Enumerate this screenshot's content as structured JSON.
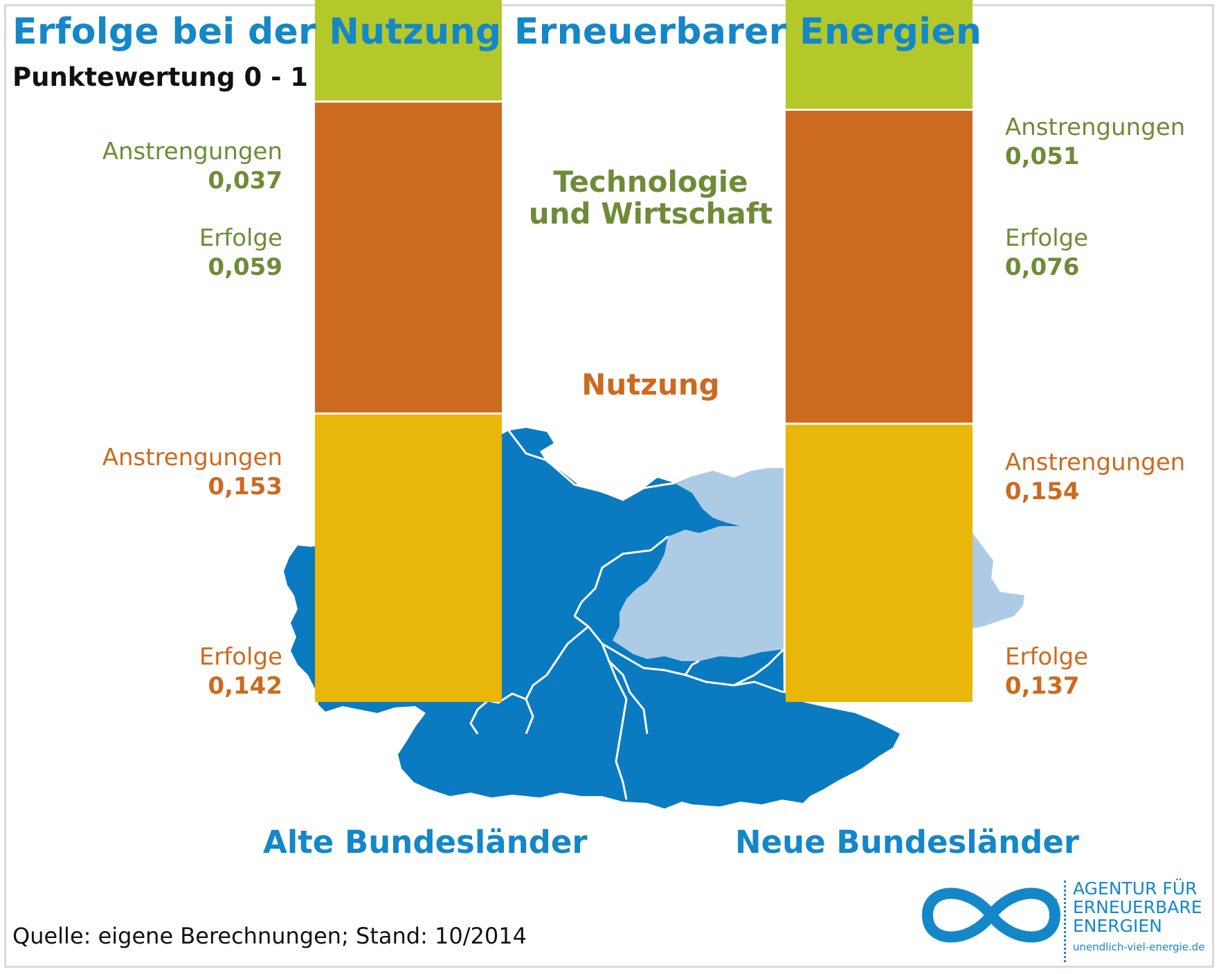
{
  "title": "Erfolge bei der Nutzung Erneuerbarer Energien",
  "subtitle": "Punktewertung 0 - 1",
  "source": "Quelle: eigene Berechnungen; Stand: 10/2014",
  "logo": {
    "line1": "AGENTUR FÜR",
    "line2": "ERNEUERBARE",
    "line3": "ENERGIEN",
    "url": "unendlich-viel-energie.de"
  },
  "colors": {
    "title": "#1487c9",
    "map_west": "#0a7bc1",
    "map_east": "#aecbe6",
    "tech_anstrengungen": "#6e8b37",
    "tech_erfolge": "#b5c829",
    "nutzung_anstrengungen": "#cc6a1f",
    "nutzung_erfolge": "#e8b70a"
  },
  "chart_data": {
    "type": "bar",
    "stacked": true,
    "categories": [
      "Alte Bundesländer",
      "Neue Bundesländer"
    ],
    "groups": [
      {
        "name": "Technologie und Wirtschaft",
        "line1": "Technologie",
        "line2": "und Wirtschaft",
        "color": "#6e8b37"
      },
      {
        "name": "Nutzung",
        "color": "#cc6a1f"
      }
    ],
    "series": [
      {
        "group": "Nutzung",
        "name": "Erfolge",
        "color": "#e8b70a",
        "values": [
          0.142,
          0.137
        ],
        "value_labels": [
          "0,142",
          "0,137"
        ]
      },
      {
        "group": "Nutzung",
        "name": "Anstrengungen",
        "color": "#cc6a1f",
        "values": [
          0.153,
          0.154
        ],
        "value_labels": [
          "0,153",
          "0,154"
        ]
      },
      {
        "group": "Technologie und Wirtschaft",
        "name": "Erfolge",
        "color": "#b5c829",
        "values": [
          0.059,
          0.076
        ],
        "value_labels": [
          "0,059",
          "0,076"
        ]
      },
      {
        "group": "Technologie und Wirtschaft",
        "name": "Anstrengungen",
        "color": "#6e8b37",
        "values": [
          0.037,
          0.051
        ],
        "value_labels": [
          "0,037",
          "0,051"
        ]
      }
    ],
    "grid": false,
    "legend": "none"
  }
}
